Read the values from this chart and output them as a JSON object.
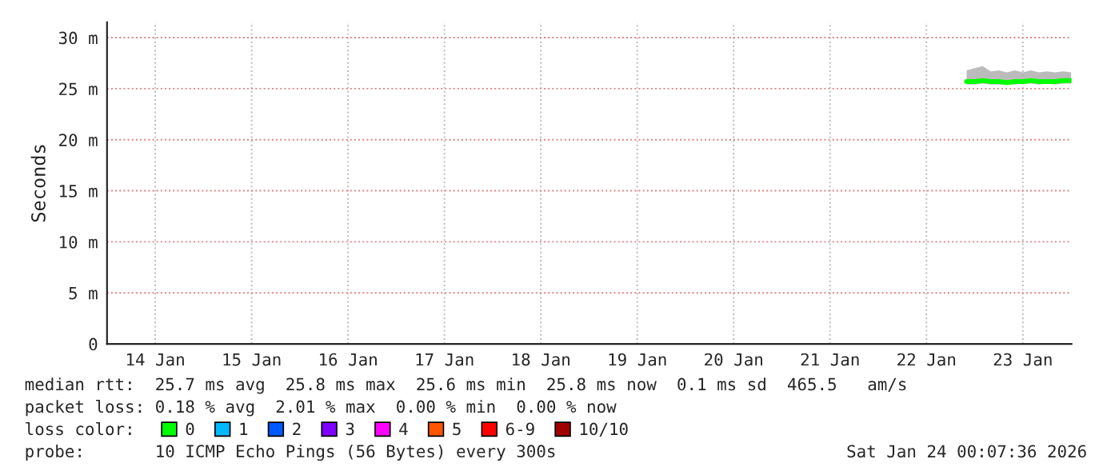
{
  "chart_data": {
    "type": "line",
    "ylabel": "Seconds",
    "x": [
      "2026-01-22T22:00",
      "2026-01-23T00:00",
      "2026-01-23T02:00",
      "2026-01-23T04:00",
      "2026-01-23T06:00",
      "2026-01-23T08:00",
      "2026-01-23T10:00",
      "2026-01-23T12:00",
      "2026-01-23T14:00",
      "2026-01-23T16:00",
      "2026-01-23T18:00",
      "2026-01-23T20:00",
      "2026-01-23T22:00",
      "2026-01-24T00:00"
    ],
    "series": [
      {
        "name": "0",
        "color": "#00ff00",
        "values": [
          25.7,
          25.7,
          25.8,
          25.7,
          25.7,
          25.6,
          25.7,
          25.7,
          25.8,
          25.7,
          25.7,
          25.7,
          25.8,
          25.8
        ],
        "lower": [
          25.4,
          25.4,
          25.5,
          25.4,
          25.4,
          25.4,
          25.4,
          25.5,
          25.5,
          25.4,
          25.5,
          25.4,
          25.5,
          25.5
        ],
        "upper": [
          26.8,
          27.0,
          27.2,
          26.7,
          26.8,
          26.6,
          26.8,
          26.6,
          26.8,
          26.6,
          26.7,
          26.6,
          26.7,
          26.6
        ]
      },
      {
        "name": "1",
        "color": "#00b8ff",
        "values": [
          null,
          null,
          null,
          null,
          null,
          null,
          null,
          null,
          null,
          null,
          null,
          null,
          null,
          null
        ]
      },
      {
        "name": "2",
        "color": "#0059ff",
        "values": [
          null,
          null,
          null,
          null,
          null,
          null,
          null,
          null,
          null,
          null,
          null,
          null,
          null,
          null
        ]
      },
      {
        "name": "3",
        "color": "#7e00ff",
        "values": [
          null,
          null,
          null,
          null,
          null,
          null,
          null,
          null,
          null,
          null,
          null,
          null,
          null,
          null
        ]
      },
      {
        "name": "4",
        "color": "#ff00ff",
        "values": [
          null,
          null,
          null,
          null,
          null,
          null,
          null,
          null,
          null,
          null,
          null,
          null,
          null,
          null
        ]
      },
      {
        "name": "5",
        "color": "#ff5500",
        "values": [
          null,
          null,
          null,
          null,
          null,
          null,
          null,
          null,
          null,
          null,
          null,
          null,
          null,
          null
        ]
      },
      {
        "name": "6-9",
        "color": "#ff0000",
        "values": [
          null,
          null,
          null,
          null,
          null,
          null,
          null,
          null,
          null,
          null,
          null,
          null,
          null,
          null
        ]
      },
      {
        "name": "10/10",
        "color": "#a10000",
        "values": [
          null,
          null,
          null,
          null,
          null,
          null,
          null,
          null,
          null,
          null,
          null,
          null,
          null,
          null
        ]
      }
    ],
    "legend_title": "loss color:",
    "legend": "bottom",
    "xlim": [
      "2026-01-14T00:00",
      "2026-01-24T00:07"
    ],
    "xticks": [
      {
        "value": "2026-01-14T12:00",
        "label": "14 Jan"
      },
      {
        "value": "2026-01-15T12:00",
        "label": "15 Jan"
      },
      {
        "value": "2026-01-16T12:00",
        "label": "16 Jan"
      },
      {
        "value": "2026-01-17T12:00",
        "label": "17 Jan"
      },
      {
        "value": "2026-01-18T12:00",
        "label": "18 Jan"
      },
      {
        "value": "2026-01-19T12:00",
        "label": "19 Jan"
      },
      {
        "value": "2026-01-20T12:00",
        "label": "20 Jan"
      },
      {
        "value": "2026-01-21T12:00",
        "label": "21 Jan"
      },
      {
        "value": "2026-01-22T12:00",
        "label": "22 Jan"
      },
      {
        "value": "2026-01-23T12:00",
        "label": "23 Jan"
      }
    ],
    "ylim": [
      0,
      31.5
    ],
    "yticks": [
      0,
      {
        "value": 5,
        "label": "5 m"
      },
      {
        "value": 10,
        "label": "10 m"
      },
      {
        "value": 15,
        "label": "15 m"
      },
      {
        "value": 20,
        "label": "20 m"
      },
      {
        "value": 25,
        "label": "25 m"
      },
      {
        "value": 30,
        "label": "30 m"
      }
    ],
    "grid": true,
    "line_style": "solid",
    "marker": "none",
    "annotations": [
      "median rtt:  25.7 ms avg  25.8 ms max  25.6 ms min  25.8 ms now  0.1 ms sd  465.5   am/s",
      "packet loss: 0.18 % avg  2.01 % max  0.00 % min  0.00 % now",
      "probe:       10 ICMP Echo Pings (56 Bytes) every 300s",
      "Sat Jan 24 00:07:36 2026"
    ]
  }
}
